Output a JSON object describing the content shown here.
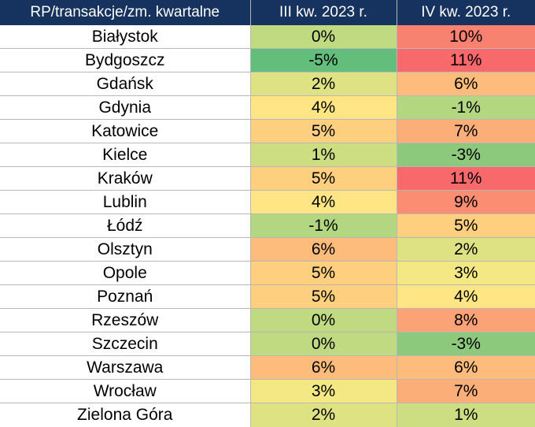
{
  "chart_data": {
    "type": "table",
    "columns": [
      "RP/transakcje/zm. kwartalne",
      "III kw. 2023 r.",
      "IV kw. 2023 r."
    ],
    "rows": [
      {
        "city": "Białystok",
        "q3": "0%",
        "q4": "10%"
      },
      {
        "city": "Bydgoszcz",
        "q3": "-5%",
        "q4": "11%"
      },
      {
        "city": "Gdańsk",
        "q3": "2%",
        "q4": "6%"
      },
      {
        "city": "Gdynia",
        "q3": "4%",
        "q4": "-1%"
      },
      {
        "city": "Katowice",
        "q3": "5%",
        "q4": "7%"
      },
      {
        "city": "Kielce",
        "q3": "1%",
        "q4": "-3%"
      },
      {
        "city": "Kraków",
        "q3": "5%",
        "q4": "11%"
      },
      {
        "city": "Lublin",
        "q3": "4%",
        "q4": "9%"
      },
      {
        "city": "Łódź",
        "q3": "-1%",
        "q4": "5%"
      },
      {
        "city": "Olsztyn",
        "q3": "6%",
        "q4": "2%"
      },
      {
        "city": "Opole",
        "q3": "5%",
        "q4": "3%"
      },
      {
        "city": "Poznań",
        "q3": "5%",
        "q4": "4%"
      },
      {
        "city": "Rzeszów",
        "q3": "0%",
        "q4": "8%"
      },
      {
        "city": "Szczecin",
        "q3": "0%",
        "q4": "-3%"
      },
      {
        "city": "Warszawa",
        "q3": "6%",
        "q4": "6%"
      },
      {
        "city": "Wrocław",
        "q3": "3%",
        "q4": "7%"
      },
      {
        "city": "Zielona Góra",
        "q3": "2%",
        "q4": "1%"
      }
    ]
  },
  "colors": {
    "header_bg": "#16325e",
    "header_text": "#ffffff",
    "scale": {
      "-5": "#63be7b",
      "-3": "#8dc97d",
      "-1": "#b3d680",
      "0": "#c0da81",
      "1": "#cddd82",
      "2": "#dfe283",
      "3": "#f3e884",
      "4": "#ffe584",
      "5": "#fecf7e",
      "6": "#fdbc7b",
      "7": "#fcae79",
      "8": "#fba276",
      "9": "#fa8d72",
      "10": "#f98170",
      "11": "#f8696b"
    }
  }
}
